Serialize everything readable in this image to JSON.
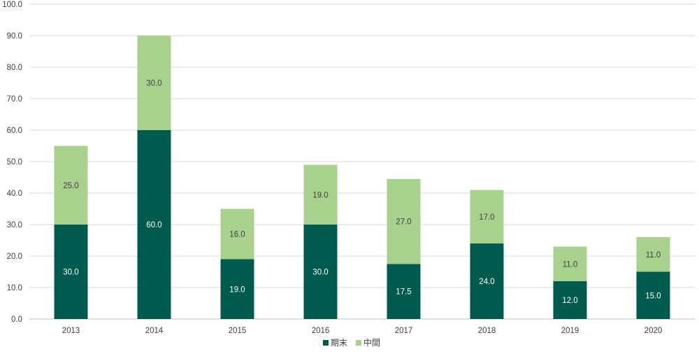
{
  "chart_data": {
    "type": "bar",
    "stacked": true,
    "categories": [
      "2013",
      "2014",
      "2015",
      "2016",
      "2017",
      "2018",
      "2019",
      "2020"
    ],
    "series": [
      {
        "name": "期末",
        "color": "#005a4e",
        "label_color": "#ffffff",
        "values": [
          30.0,
          60.0,
          19.0,
          30.0,
          17.5,
          24.0,
          12.0,
          15.0
        ]
      },
      {
        "name": "中間",
        "color": "#a9d18e",
        "label_color": "#404040",
        "values": [
          25.0,
          30.0,
          16.0,
          19.0,
          27.0,
          17.0,
          11.0,
          11.0
        ]
      }
    ],
    "ylim": [
      0,
      100
    ],
    "yticks": [
      0,
      10,
      20,
      30,
      40,
      50,
      60,
      70,
      80,
      90,
      100
    ],
    "ytick_decimals": 1,
    "value_decimals": 1,
    "grid": true,
    "legend_position": "bottom",
    "title": "",
    "xlabel": "",
    "ylabel": ""
  }
}
